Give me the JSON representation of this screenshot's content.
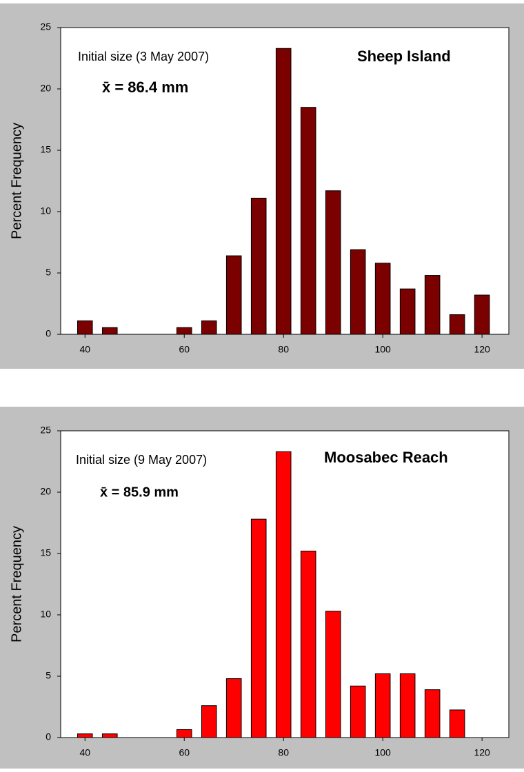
{
  "chart_data": [
    {
      "type": "bar",
      "title": "Sheep Island",
      "ylabel": "Percent Frequency",
      "annotations": [
        "Initial size (3 May 2007)",
        "x̄ = 86.4 mm"
      ],
      "x": [
        40,
        45,
        50,
        55,
        60,
        65,
        70,
        75,
        80,
        85,
        90,
        95,
        100,
        105,
        110,
        115,
        120
      ],
      "values": [
        1.1,
        0.55,
        0,
        0,
        0.55,
        1.1,
        6.4,
        11.1,
        23.3,
        18.5,
        11.7,
        6.9,
        5.8,
        3.7,
        4.8,
        1.6,
        3.2
      ],
      "color": "#7b0000",
      "xlim": [
        35.1,
        125.4
      ],
      "xticks": [
        40,
        60,
        80,
        100,
        120
      ],
      "ylim": [
        0,
        25
      ],
      "yticks": [
        0,
        5,
        10,
        15,
        20,
        25
      ]
    },
    {
      "type": "bar",
      "title": "Moosabec Reach",
      "ylabel": "Percent Frequency",
      "annotations": [
        "Initial size (9 May 2007)",
        "x̄ = 85.9 mm"
      ],
      "x": [
        40,
        45,
        50,
        55,
        60,
        65,
        70,
        75,
        80,
        85,
        90,
        95,
        100,
        105,
        110,
        115,
        120
      ],
      "values": [
        0.3,
        0.3,
        0,
        0,
        0.65,
        2.6,
        4.8,
        17.8,
        23.3,
        15.2,
        10.3,
        4.2,
        5.2,
        5.2,
        3.9,
        2.25,
        0
      ],
      "color": "#ff0000",
      "xlim": [
        35.1,
        125.4
      ],
      "xticks": [
        40,
        60,
        80,
        100,
        120
      ],
      "ylim": [
        0,
        25
      ],
      "yticks": [
        0,
        5,
        10,
        15,
        20,
        25
      ]
    }
  ]
}
